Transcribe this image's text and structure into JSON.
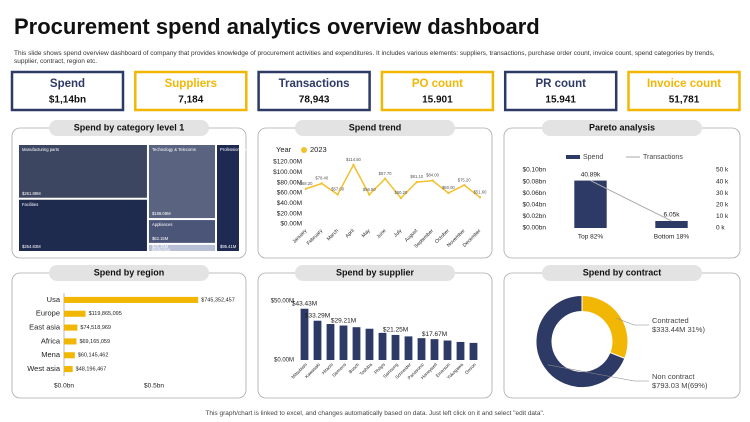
{
  "title": "Procurement spend analytics overview dashboard",
  "subtitle": "This slide shows spend overview dashboard of company that provides knowledge of procurement activities and expenditures. It includes various elements: suppliers, transactions, purchase order count, invoice count, spend categories by trends, supplier, contract, region etc.",
  "kpis": [
    {
      "label": "Spend",
      "value": "$1,14bn",
      "color": "#2E3A66"
    },
    {
      "label": "Suppliers",
      "value": "7,184",
      "color": "#F2B705"
    },
    {
      "label": "Transactions",
      "value": "78,943",
      "color": "#2E3A66"
    },
    {
      "label": "PO count",
      "value": "15.901",
      "color": "#F2B705"
    },
    {
      "label": "PR count",
      "value": "15.941",
      "color": "#2E3A66"
    },
    {
      "label": "Invoice count",
      "value": "51,781",
      "color": "#F2B705"
    }
  ],
  "footer": "This graph/chart is linked to excel, and changes automatically based on data. Just left click on it and select \"edit data\".",
  "chart_data": [
    {
      "type": "treemap",
      "title": "Spend by category level 1",
      "categories": [
        "Manufacturing parts",
        "Facilities",
        "Technology & Telecoms",
        "Appliances",
        "Marketing",
        "Professional services"
      ],
      "values": [
        261.89,
        254.83,
        188.08,
        62.15,
        20.35,
        95.41
      ],
      "value_labels": [
        "$261.89M",
        "$254.83M",
        "$188.08M",
        "$62.15M",
        "$20.35M",
        "$95.41M"
      ],
      "colors": [
        "#3C4661",
        "#1E2B4F",
        "#5A6480",
        "#4A5578",
        "#B7BFD6",
        "#1F2A52"
      ]
    },
    {
      "type": "line",
      "title": "Spend trend",
      "legend_title": "Year",
      "categories": [
        "January",
        "February",
        "March",
        "April",
        "May",
        "June",
        "July",
        "August",
        "September",
        "October",
        "November",
        "December"
      ],
      "series": [
        {
          "name": "2023",
          "color": "#F2C12E",
          "values": [
            68.2,
            78.4,
            57.0,
            114.5,
            56.8,
            87.7,
            50.2,
            81.1,
            84.0,
            60.0,
            75.2,
            51.6
          ],
          "value_labels": [
            "$68.20",
            "$78.40",
            "$57.00",
            "$114.50",
            "$56.80",
            "$87.70",
            "$50.20",
            "$81.10",
            "$84.00",
            "$60.00",
            "$75.20",
            "$51.60"
          ]
        }
      ],
      "ylim": [
        0,
        120
      ],
      "yticks": [
        {
          "value": 0,
          "label": "$0.00M"
        },
        {
          "value": 20,
          "label": "$20.00M"
        },
        {
          "value": 40,
          "label": "$40.00M"
        },
        {
          "value": 60,
          "label": "$60.00M"
        },
        {
          "value": 80,
          "label": "$80.00M"
        },
        {
          "value": 100,
          "label": "$100.00M"
        },
        {
          "value": 120,
          "label": "$120.00M"
        }
      ],
      "grid": false
    },
    {
      "type": "pareto",
      "title": "Pareto analysis",
      "categories": [
        "Top 82%",
        "Bottom 18%"
      ],
      "series": [
        {
          "name": "Spend",
          "kind": "bar",
          "axis": "y2",
          "color": "#2E3A66",
          "values": [
            40.89,
            6.05
          ],
          "value_labels": [
            "40.89k",
            "6.05k"
          ]
        },
        {
          "name": "Transactions",
          "kind": "line",
          "axis": "y2",
          "color": "#AAAAAA",
          "values": [
            40.89,
            6.05
          ]
        }
      ],
      "ylim": [
        0,
        0.1
      ],
      "yticks": [
        {
          "value": 0,
          "label": "$0.00bn"
        },
        {
          "value": 0.02,
          "label": "$0.02bn"
        },
        {
          "value": 0.04,
          "label": "$0.04bn"
        },
        {
          "value": 0.06,
          "label": "$0.06bn"
        },
        {
          "value": 0.08,
          "label": "$0.08bn"
        },
        {
          "value": 0.1,
          "label": "$0.10bn"
        }
      ],
      "y2lim": [
        0,
        50
      ],
      "y2ticks": [
        {
          "value": 0,
          "label": "0 k"
        },
        {
          "value": 10,
          "label": "10 k"
        },
        {
          "value": 20,
          "label": "20 k"
        },
        {
          "value": 30,
          "label": "30 k"
        },
        {
          "value": 40,
          "label": "40 k"
        },
        {
          "value": 50,
          "label": "50 k"
        }
      ]
    },
    {
      "type": "barh",
      "title": "Spend by region",
      "color": "#F2B705",
      "categories": [
        "Usa",
        "Europe",
        "East asia",
        "Africa",
        "Mena",
        "West asia"
      ],
      "values": [
        745352457,
        119865095,
        74518969,
        69165059,
        60145462,
        48196467
      ],
      "value_labels": [
        "$745,352,457",
        "$119,865,095",
        "$74,518,969",
        "$69,165,059",
        "$60,145,462",
        "$48,196,467"
      ],
      "xlim": [
        0,
        900000000
      ],
      "xticks": [
        {
          "value": 0,
          "label": "$0.0bn"
        },
        {
          "value": 500000000,
          "label": "$0.5bn"
        }
      ]
    },
    {
      "type": "bar",
      "title": "Spend by supplier",
      "color": "#2E3A66",
      "categories": [
        "Mitsubishi",
        "Kawasaki",
        "Hitachi",
        "Siemens",
        "Bosch",
        "Toshiba",
        "Philips",
        "Samsung",
        "Schneider",
        "Panasonic",
        "Honeywell",
        "Emerson",
        "Yokogawa",
        "Omron"
      ],
      "values": [
        43.43,
        33.29,
        30.5,
        29.21,
        27.8,
        26.5,
        23.0,
        21.25,
        20.0,
        18.5,
        17.67,
        16.5,
        15.3,
        14.5
      ],
      "value_labels": [
        "$43.43M",
        "$33.29M",
        null,
        "$29.21M",
        null,
        null,
        null,
        "$21.25M",
        null,
        null,
        "$17.67M",
        null,
        null,
        null
      ],
      "ylim": [
        0,
        50
      ],
      "yticks": [
        {
          "value": 0,
          "label": "$0.00M"
        },
        {
          "value": 50,
          "label": "$50.00M"
        }
      ]
    },
    {
      "type": "donut",
      "title": "Spend by contract",
      "categories": [
        "Contracted",
        "Non contract"
      ],
      "values": [
        31,
        69
      ],
      "value_labels": [
        "$333.44M 31%)",
        "$793.03 M(69%)"
      ],
      "colors": [
        "#F2B705",
        "#2E3A66"
      ]
    }
  ]
}
